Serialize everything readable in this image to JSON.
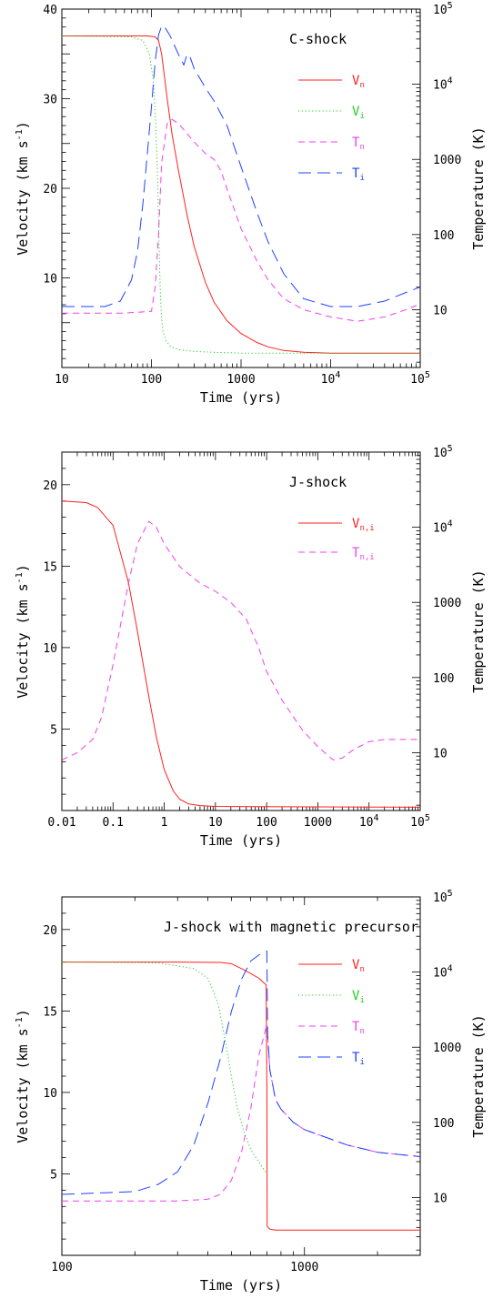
{
  "chart_data": [
    {
      "type": "line",
      "title": "C-shock",
      "xlabel": "Time (yrs)",
      "ylabel": "Velocity (km s⁻¹)",
      "y2label": "Temperature (K)",
      "xscale": "log",
      "xlim": [
        10,
        100000
      ],
      "ylim": [
        0,
        40
      ],
      "y2scale": "log",
      "y2lim": [
        1.7,
        100000
      ],
      "x_ticks": [
        "10",
        "100",
        "1000",
        "10⁴",
        "10⁵"
      ],
      "y_ticks": [
        "10",
        "20",
        "30",
        "40"
      ],
      "y2_ticks": [
        "10",
        "100",
        "1000",
        "10⁴",
        "10⁵"
      ],
      "legend_position": "top-right",
      "series": [
        {
          "name": "Vn",
          "sym": "V",
          "sub": "n",
          "color": "#ff2020",
          "dash": "solid",
          "axis": "left",
          "x": [
            10,
            50,
            90,
            110,
            120,
            130,
            150,
            170,
            200,
            250,
            300,
            400,
            500,
            700,
            1000,
            1500,
            2000,
            3000,
            5000,
            10000,
            100000
          ],
          "y": [
            37,
            37,
            37,
            36.9,
            36.5,
            35,
            30,
            26,
            22,
            17,
            13.5,
            9.5,
            7.3,
            5.2,
            3.8,
            2.8,
            2.3,
            1.9,
            1.7,
            1.6,
            1.6
          ]
        },
        {
          "name": "Vi",
          "sym": "V",
          "sub": "i",
          "color": "#20d020",
          "dash": "dot",
          "axis": "left",
          "x": [
            10,
            60,
            80,
            95,
            105,
            112,
            118,
            122,
            126,
            130,
            135,
            145,
            160,
            200,
            300,
            500,
            1000,
            100000
          ],
          "y": [
            37,
            36.9,
            36.5,
            35,
            32,
            27,
            20,
            13,
            8,
            5.5,
            4,
            3,
            2.4,
            2,
            1.8,
            1.7,
            1.6,
            1.6
          ]
        },
        {
          "name": "Tn",
          "sym": "T",
          "sub": "n",
          "color": "#ee40ee",
          "dash": "dash",
          "axis": "right",
          "x": [
            10,
            50,
            100,
            110,
            120,
            130,
            150,
            170,
            200,
            250,
            300,
            400,
            500,
            600,
            700,
            1000,
            1500,
            2000,
            3000,
            5000,
            10000,
            20000,
            40000,
            70000,
            100000
          ],
          "y": [
            9,
            9,
            9.5,
            20,
            100,
            900,
            3000,
            3400,
            3000,
            2200,
            1700,
            1200,
            1000,
            700,
            400,
            120,
            45,
            25,
            14,
            10,
            8,
            7,
            8,
            10,
            12
          ]
        },
        {
          "name": "Ti",
          "sym": "T",
          "sub": "i",
          "color": "#2040ff",
          "dash": "longdash",
          "axis": "right",
          "x": [
            10,
            30,
            45,
            60,
            70,
            80,
            90,
            100,
            110,
            120,
            130,
            140,
            160,
            200,
            230,
            250,
            270,
            300,
            400,
            500,
            700,
            1000,
            1500,
            2000,
            3000,
            5000,
            10000,
            20000,
            40000,
            70000,
            100000
          ],
          "y": [
            11,
            11,
            13,
            25,
            60,
            250,
            1200,
            5000,
            20000,
            45000,
            60000,
            58000,
            45000,
            25000,
            18000,
            25000,
            23000,
            16000,
            9000,
            6000,
            2800,
            800,
            200,
            80,
            30,
            14,
            11,
            11,
            13,
            17,
            20
          ]
        }
      ]
    },
    {
      "type": "line",
      "title": "J-shock",
      "xlabel": "Time (yrs)",
      "ylabel": "Velocity (km s⁻¹)",
      "y2label": "Temperature (K)",
      "xscale": "log",
      "xlim": [
        0.01,
        100000
      ],
      "ylim": [
        0,
        22
      ],
      "y2scale": "log",
      "y2lim": [
        1.7,
        100000
      ],
      "x_ticks": [
        "0.01",
        "0.1",
        "1",
        "10",
        "100",
        "1000",
        "10⁴",
        "10⁵"
      ],
      "y_ticks": [
        "5",
        "10",
        "15",
        "20"
      ],
      "y2_ticks": [
        "10",
        "100",
        "1000",
        "10⁴",
        "10⁵"
      ],
      "legend_position": "top-right",
      "series": [
        {
          "name": "Vn,i",
          "sym": "V",
          "sub": "n,i",
          "color": "#ff2020",
          "dash": "solid",
          "axis": "left",
          "x": [
            0.01,
            0.03,
            0.05,
            0.1,
            0.2,
            0.3,
            0.5,
            0.7,
            1,
            1.5,
            2,
            3,
            5,
            10,
            100000
          ],
          "y": [
            19,
            18.9,
            18.6,
            17.5,
            14,
            11,
            7,
            4.5,
            2.5,
            1.2,
            0.7,
            0.4,
            0.3,
            0.25,
            0.2
          ]
        },
        {
          "name": "Tn,i",
          "sym": "T",
          "sub": "n,i",
          "color": "#ee40ee",
          "dash": "dash",
          "axis": "right",
          "x": [
            0.01,
            0.02,
            0.04,
            0.06,
            0.1,
            0.2,
            0.3,
            0.5,
            0.7,
            1,
            2,
            5,
            10,
            20,
            40,
            70,
            100,
            200,
            500,
            1000,
            2000,
            3000,
            5000,
            10000,
            20000,
            100000
          ],
          "y": [
            8,
            10,
            15,
            30,
            150,
            1800,
            6000,
            12000,
            10000,
            6000,
            3000,
            1800,
            1400,
            1000,
            600,
            250,
            120,
            50,
            20,
            12,
            8,
            8.5,
            11,
            14,
            15,
            15
          ]
        }
      ]
    },
    {
      "type": "line",
      "title": "J-shock with magnetic precursor",
      "xlabel": "Time (yrs)",
      "ylabel": "Velocity (km s⁻¹)",
      "y2label": "Temperature (K)",
      "xscale": "log",
      "xlim": [
        100,
        3000
      ],
      "ylim": [
        0,
        22
      ],
      "y2scale": "log",
      "y2lim": [
        1.7,
        100000
      ],
      "x_ticks": [
        "100",
        "1000"
      ],
      "y_ticks": [
        "5",
        "10",
        "15",
        "20"
      ],
      "y2_ticks": [
        "10",
        "100",
        "1000",
        "10⁴",
        "10⁵"
      ],
      "legend_position": "top-right",
      "series": [
        {
          "name": "Vn",
          "sym": "V",
          "sub": "n",
          "color": "#ff2020",
          "dash": "solid",
          "axis": "left",
          "x": [
            100,
            300,
            450,
            500,
            550,
            600,
            650,
            695,
            700,
            702,
            710,
            720,
            760,
            800,
            3000
          ],
          "y": [
            18,
            18,
            17.98,
            17.9,
            17.6,
            17.3,
            17,
            16.6,
            10,
            1.8,
            1.7,
            1.6,
            1.55,
            1.55,
            1.55
          ]
        },
        {
          "name": "Vi",
          "sym": "V",
          "sub": "i",
          "color": "#20d020",
          "dash": "dot",
          "axis": "left",
          "x": [
            100,
            250,
            350,
            400,
            440,
            460,
            480,
            500,
            530,
            560,
            600,
            650,
            700
          ],
          "y": [
            18,
            17.95,
            17.6,
            17,
            15.5,
            14,
            12.5,
            11,
            9,
            7.7,
            6.5,
            5.7,
            5
          ]
        },
        {
          "name": "Tn",
          "sym": "T",
          "sub": "n",
          "color": "#ee40ee",
          "dash": "dash",
          "axis": "right",
          "x": [
            100,
            300,
            400,
            450,
            500,
            550,
            600,
            650,
            700,
            705,
            720,
            760,
            800,
            900,
            1000,
            1500,
            2000,
            3000
          ],
          "y": [
            9,
            9,
            9.5,
            11,
            17,
            40,
            150,
            800,
            2000,
            1500,
            500,
            200,
            150,
            100,
            80,
            50,
            40,
            35
          ]
        },
        {
          "name": "Ti",
          "sym": "T",
          "sub": "i",
          "color": "#2040ff",
          "dash": "longdash",
          "axis": "right",
          "x": [
            100,
            200,
            250,
            300,
            350,
            400,
            450,
            500,
            550,
            600,
            650,
            700,
            705,
            720,
            760,
            800,
            900,
            1000,
            1500,
            2000,
            3000
          ],
          "y": [
            11,
            12,
            15,
            22,
            50,
            180,
            700,
            3000,
            8000,
            14000,
            17000,
            19000,
            1500,
            500,
            200,
            150,
            100,
            80,
            50,
            40,
            35
          ]
        }
      ]
    }
  ]
}
